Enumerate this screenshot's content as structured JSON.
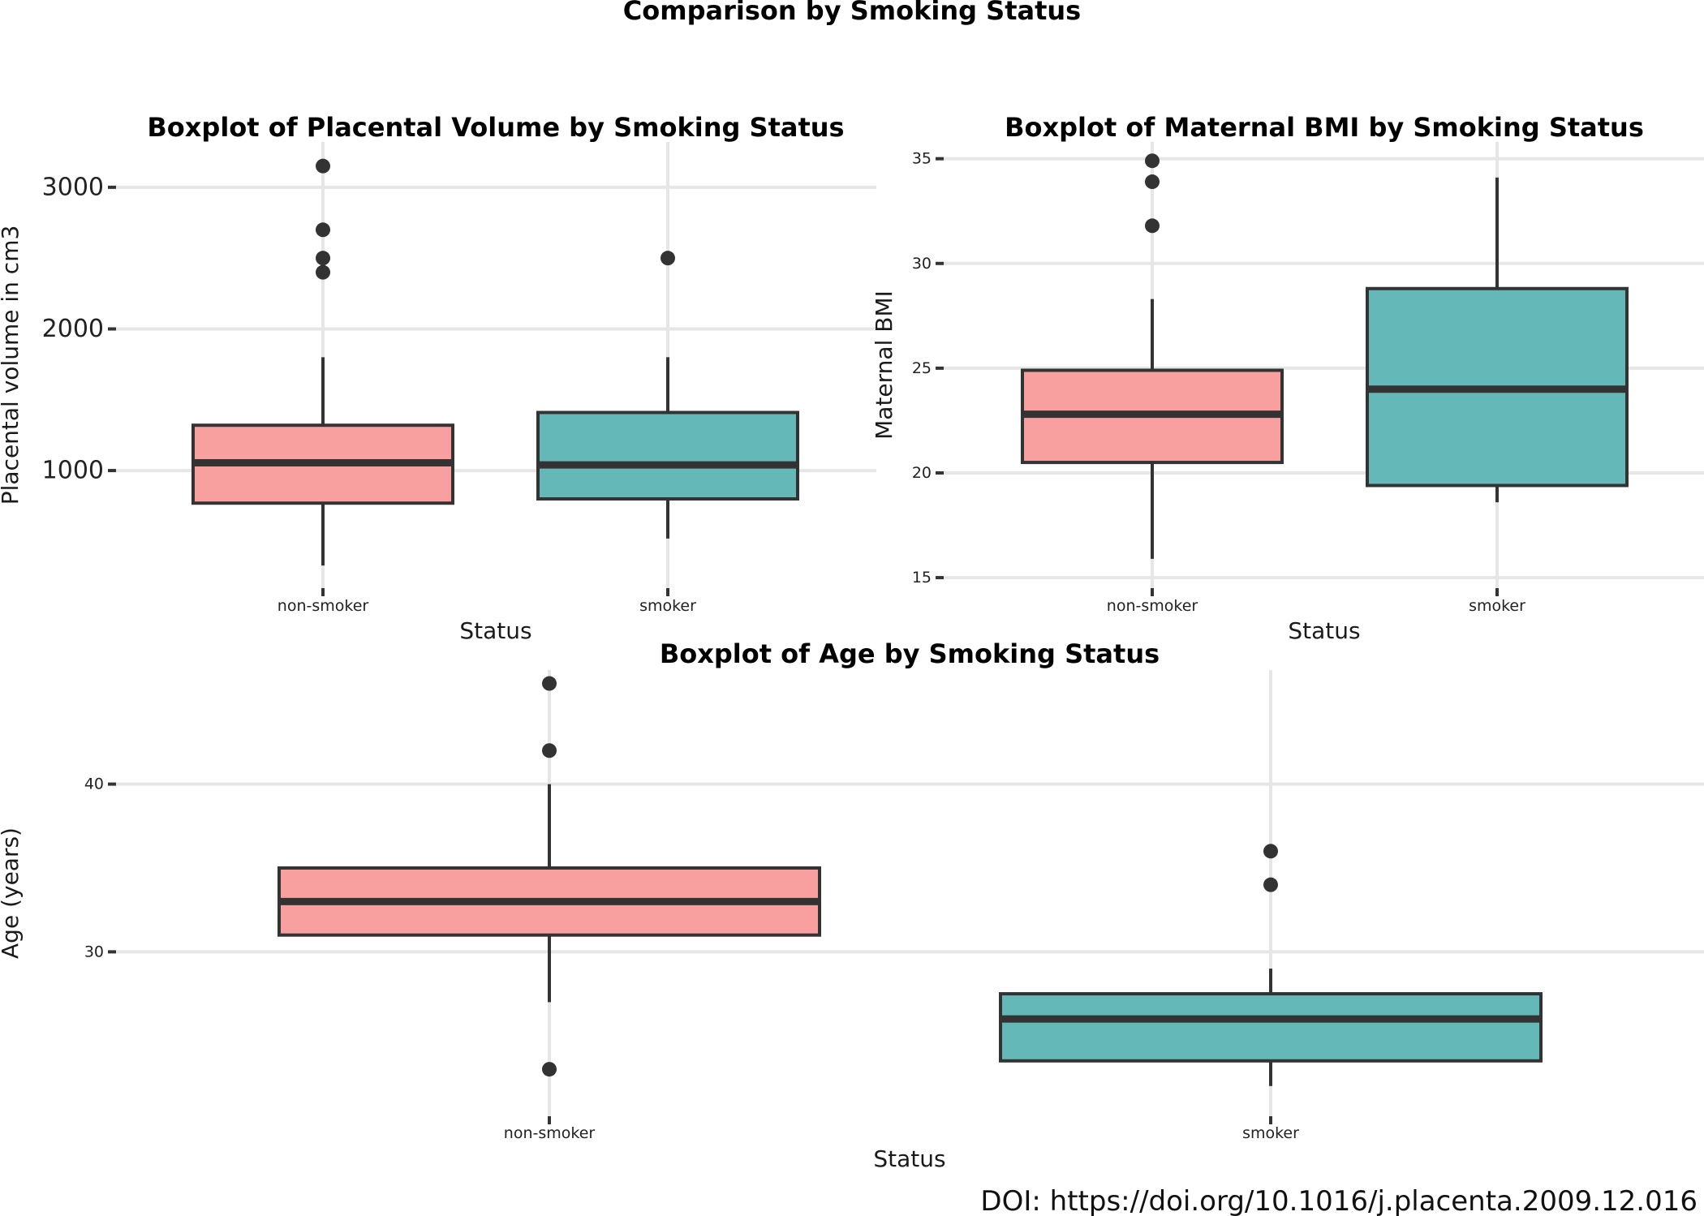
{
  "figure": {
    "title": "Comparison by Smoking Status",
    "doi": "DOI: https://doi.org/10.1016/j.placenta.2009.12.016"
  },
  "colors": {
    "non_smoker": "#f8a0a0",
    "smoker": "#64b9b8",
    "outline": "#333333",
    "grid": "#e6e6e6"
  },
  "chart_data": [
    {
      "type": "box",
      "title": "Boxplot of Placental Volume by Smoking Status",
      "xlabel": "Status",
      "ylabel": "Placental volume in cm3",
      "categories": [
        "non-smoker",
        "smoker"
      ],
      "ylim": [
        170,
        3320
      ],
      "yticks": [
        1000,
        2000,
        3000
      ],
      "grid": true,
      "boxes": [
        {
          "category": "non-smoker",
          "color": "#f8a0a0",
          "whisker_low": 330,
          "q1": 770,
          "median": 1055,
          "q3": 1320,
          "whisker_high": 1800,
          "outliers": [
            2400,
            2500,
            2700,
            3150
          ]
        },
        {
          "category": "smoker",
          "color": "#64b9b8",
          "whisker_low": 520,
          "q1": 800,
          "median": 1040,
          "q3": 1410,
          "whisker_high": 1800,
          "outliers": [
            2500
          ]
        }
      ]
    },
    {
      "type": "box",
      "title": "Boxplot of Maternal BMI by Smoking Status",
      "xlabel": "Status",
      "ylabel": "Maternal BMI",
      "categories": [
        "non-smoker",
        "smoker"
      ],
      "ylim": [
        14.5,
        35.8
      ],
      "yticks": [
        15,
        20,
        25,
        30,
        35
      ],
      "grid": true,
      "boxes": [
        {
          "category": "non-smoker",
          "color": "#f8a0a0",
          "whisker_low": 15.9,
          "q1": 20.5,
          "median": 22.8,
          "q3": 24.9,
          "whisker_high": 28.3,
          "outliers": [
            31.8,
            33.9,
            34.9
          ]
        },
        {
          "category": "smoker",
          "color": "#64b9b8",
          "whisker_low": 18.6,
          "q1": 19.4,
          "median": 24.0,
          "q3": 28.8,
          "whisker_high": 34.1,
          "outliers": []
        }
      ]
    },
    {
      "type": "box",
      "title": "Boxplot of Age by Smoking Status",
      "xlabel": "Status",
      "ylabel": "Age (years)",
      "categories": [
        "non-smoker",
        "smoker"
      ],
      "ylim": [
        20.2,
        46.8
      ],
      "yticks": [
        30,
        40
      ],
      "grid": true,
      "boxes": [
        {
          "category": "non-smoker",
          "color": "#f8a0a0",
          "whisker_low": 27,
          "q1": 31,
          "median": 33,
          "q3": 35,
          "whisker_high": 40,
          "outliers": [
            23,
            42,
            46
          ]
        },
        {
          "category": "smoker",
          "color": "#64b9b8",
          "whisker_low": 22,
          "q1": 23.5,
          "median": 26,
          "q3": 27.5,
          "whisker_high": 29,
          "outliers": [
            34,
            36
          ]
        }
      ]
    }
  ]
}
